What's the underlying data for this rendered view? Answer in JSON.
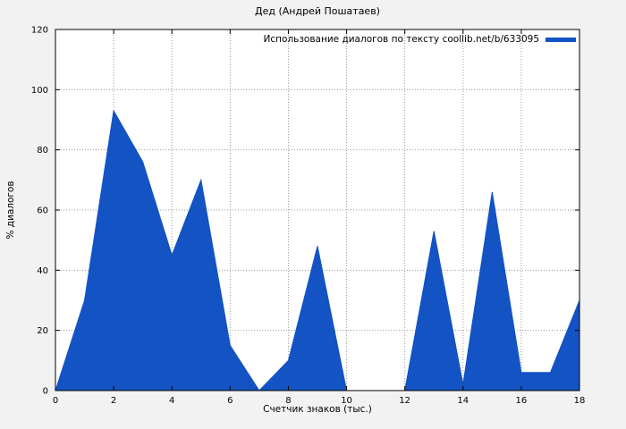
{
  "page": {
    "background": "#f2f2f2"
  },
  "chart_data": {
    "type": "area",
    "title": "Дед (Андрей Пошатаев)",
    "legend": "Использование диалогов по тексту coollib.net/b/633095",
    "xlabel": "Счетчик знаков (тыс.)",
    "ylabel": "% диалогов",
    "x": [
      0,
      1,
      2,
      3,
      4,
      5,
      6,
      7,
      8,
      9,
      10,
      11,
      12,
      13,
      14,
      15,
      16,
      17,
      18
    ],
    "values": [
      0,
      30,
      93,
      76,
      45,
      70,
      15,
      0,
      10,
      48,
      0,
      0,
      0,
      53,
      2,
      66,
      6,
      6,
      30
    ],
    "xlim": [
      0,
      18
    ],
    "ylim": [
      0,
      120
    ],
    "x_ticks": [
      0,
      2,
      4,
      6,
      8,
      10,
      12,
      14,
      16,
      18
    ],
    "y_ticks": [
      0,
      20,
      40,
      60,
      80,
      100,
      120
    ],
    "grid": true,
    "legend_position": "top-right",
    "fill_color": "#1353c4",
    "plot_bg": "#ffffff",
    "grid_color": "#9a9a9a",
    "border_color": "#000000"
  }
}
